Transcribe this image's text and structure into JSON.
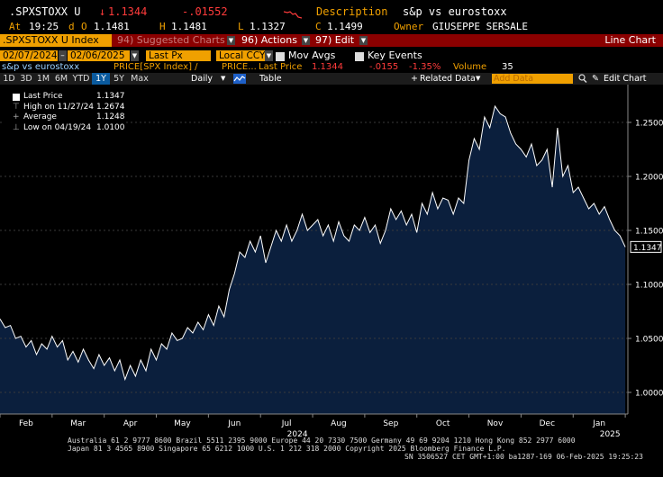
{
  "header": {
    "ticker": ".SPXSTOXX U",
    "price_arrow": "↓",
    "price": "1.1344",
    "change": "-.01552",
    "desc_label": "Description",
    "description": "s&p vs eurostoxx",
    "at_label": "At",
    "time": "19:25",
    "d_label": "d",
    "open_label": "O",
    "open": "1.1481",
    "high_label": "H",
    "high": "1.1481",
    "low_label": "L",
    "low": "1.1327",
    "close_label": "C",
    "close": "1.1499",
    "owner_label": "Owner",
    "owner": "GIUSEPPE SERSALE"
  },
  "menubar": {
    "security": ".SPXSTOXX U Index",
    "suggested": "94) Suggested Charts",
    "actions": "96) Actions",
    "edit": "97) Edit",
    "chart_type": "Line Chart"
  },
  "controls": {
    "start_date": "02/07/2024",
    "end_date": "02/06/2025",
    "field": "Last Px",
    "currency": "Local CCY",
    "mov_avgs": "Mov Avgs",
    "key_events": "Key Events"
  },
  "series_line": {
    "name": "s&p vs eurostoxx",
    "price_label": "PRICE[SPX Index] /",
    "price2": "PRICE...",
    "last_price_label": "Last Price",
    "last_price": "1.1344",
    "change": "-.0155",
    "pct": "-1.35%",
    "volume_label": "Volume",
    "volume": "35"
  },
  "toolbar": {
    "periods": [
      "1D",
      "3D",
      "1M",
      "6M",
      "YTD",
      "1Y",
      "5Y",
      "Max"
    ],
    "active_period": "1Y",
    "frequency": "Daily",
    "table": "Table",
    "related": "Related Data",
    "add_data_placeholder": "Add Data",
    "edit_chart": "Edit Chart"
  },
  "legend": {
    "last_price_label": "Last Price",
    "last_price": "1.1347",
    "high_label": "High on 11/27/24",
    "high": "1.2674",
    "average_label": "Average",
    "average": "1.1248",
    "low_label": "Low on 04/19/24",
    "low": "1.0100"
  },
  "colors": {
    "area_fill": "#0b1f3d",
    "line": "#ffffff",
    "menubar_bg": "#8b0000",
    "accent_orange": "#f0a000",
    "negative": "#ff3b3b"
  },
  "chart_data": {
    "type": "area",
    "ylim": [
      0.98,
      1.285
    ],
    "y_ticks": [
      "1.0000",
      "1.0500",
      "1.1000",
      "1.1500",
      "1.2000",
      "1.2500"
    ],
    "y_tick_values": [
      1.0,
      1.05,
      1.1,
      1.15,
      1.2,
      1.25
    ],
    "last_value_label": "1.1347",
    "last_value": 1.1347,
    "x_month_labels": [
      "Feb",
      "Mar",
      "Apr",
      "May",
      "Jun",
      "Jul",
      "Aug",
      "Sep",
      "Oct",
      "Nov",
      "Dec",
      "Jan"
    ],
    "x_month_positions": [
      0.5,
      1.5,
      2.5,
      3.5,
      4.5,
      5.5,
      6.5,
      7.5,
      8.5,
      9.5,
      10.5,
      11.5
    ],
    "x_year_labels": [
      "2024",
      "2025"
    ],
    "x_year_positions": [
      5.5,
      11.5
    ],
    "x": [
      0.0,
      0.1,
      0.2,
      0.3,
      0.4,
      0.5,
      0.6,
      0.7,
      0.8,
      0.9,
      1.0,
      1.1,
      1.2,
      1.3,
      1.4,
      1.5,
      1.6,
      1.7,
      1.8,
      1.9,
      2.0,
      2.1,
      2.2,
      2.3,
      2.4,
      2.5,
      2.6,
      2.7,
      2.8,
      2.9,
      3.0,
      3.1,
      3.2,
      3.3,
      3.4,
      3.5,
      3.6,
      3.7,
      3.8,
      3.9,
      4.0,
      4.1,
      4.2,
      4.3,
      4.4,
      4.5,
      4.6,
      4.7,
      4.8,
      4.9,
      5.0,
      5.1,
      5.2,
      5.3,
      5.4,
      5.5,
      5.6,
      5.7,
      5.8,
      5.9,
      6.0,
      6.1,
      6.2,
      6.3,
      6.4,
      6.5,
      6.6,
      6.7,
      6.8,
      6.9,
      7.0,
      7.1,
      7.2,
      7.3,
      7.4,
      7.5,
      7.6,
      7.7,
      7.8,
      7.9,
      8.0,
      8.1,
      8.2,
      8.3,
      8.4,
      8.5,
      8.6,
      8.7,
      8.8,
      8.9,
      9.0,
      9.1,
      9.2,
      9.3,
      9.4,
      9.5,
      9.6,
      9.7,
      9.8,
      9.9,
      10.0,
      10.1,
      10.2,
      10.3,
      10.4,
      10.5,
      10.6,
      10.7,
      10.8,
      10.9,
      11.0,
      11.1,
      11.2,
      11.3,
      11.4,
      11.5,
      11.6,
      11.7,
      11.8,
      11.9,
      12.0
    ],
    "values": [
      1.068,
      1.06,
      1.062,
      1.05,
      1.052,
      1.042,
      1.048,
      1.035,
      1.045,
      1.04,
      1.052,
      1.042,
      1.048,
      1.03,
      1.038,
      1.028,
      1.04,
      1.03,
      1.022,
      1.035,
      1.025,
      1.032,
      1.02,
      1.03,
      1.012,
      1.025,
      1.015,
      1.03,
      1.02,
      1.04,
      1.03,
      1.045,
      1.04,
      1.055,
      1.048,
      1.05,
      1.06,
      1.055,
      1.065,
      1.058,
      1.072,
      1.062,
      1.08,
      1.07,
      1.095,
      1.11,
      1.13,
      1.125,
      1.14,
      1.13,
      1.145,
      1.12,
      1.135,
      1.15,
      1.14,
      1.155,
      1.14,
      1.15,
      1.165,
      1.15,
      1.155,
      1.16,
      1.145,
      1.155,
      1.14,
      1.158,
      1.145,
      1.14,
      1.155,
      1.15,
      1.162,
      1.148,
      1.155,
      1.138,
      1.15,
      1.17,
      1.16,
      1.168,
      1.155,
      1.165,
      1.148,
      1.175,
      1.165,
      1.185,
      1.17,
      1.18,
      1.178,
      1.165,
      1.18,
      1.175,
      1.215,
      1.235,
      1.225,
      1.255,
      1.245,
      1.265,
      1.258,
      1.255,
      1.24,
      1.23,
      1.225,
      1.218,
      1.23,
      1.21,
      1.215,
      1.225,
      1.19,
      1.245,
      1.2,
      1.21,
      1.185,
      1.19,
      1.18,
      1.17,
      1.175,
      1.165,
      1.172,
      1.16,
      1.15,
      1.145,
      1.1347
    ]
  },
  "footer": {
    "line1": "Australia 61 2 9777 8600 Brazil 5511 2395 9000 Europe 44 20 7330 7500 Germany 49 69 9204 1210 Hong Kong 852 2977 6000",
    "line2": "Japan 81 3 4565 8900       Singapore 65 6212 1000       U.S. 1 212 318 2000          Copyright 2025 Bloomberg Finance L.P.",
    "line3": "SN 3506527 CET  GMT+1:00 ba1287-169 06-Feb-2025 19:25:23"
  }
}
